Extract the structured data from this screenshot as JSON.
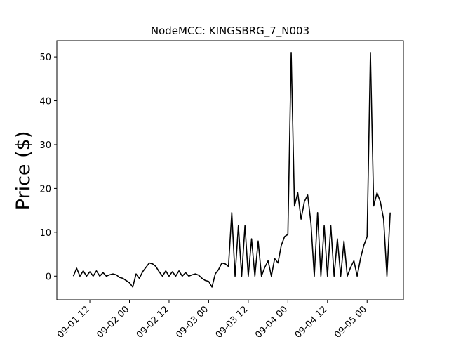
{
  "chart_data": {
    "type": "line",
    "title": "NodeMCC: KINGSBRG_7_N003",
    "y_label": "Price ($)",
    "color": "#000000",
    "x": [
      "09-01 07",
      "09-01 08",
      "09-01 09",
      "09-01 10",
      "09-01 11",
      "09-01 12",
      "09-01 13",
      "09-01 14",
      "09-01 15",
      "09-01 16",
      "09-01 17",
      "09-01 18",
      "09-01 19",
      "09-01 20",
      "09-01 21",
      "09-01 22",
      "09-01 23",
      "09-02 00",
      "09-02 01",
      "09-02 02",
      "09-02 03",
      "09-02 04",
      "09-02 05",
      "09-02 06",
      "09-02 07",
      "09-02 08",
      "09-02 09",
      "09-02 10",
      "09-02 11",
      "09-02 12",
      "09-02 13",
      "09-02 14",
      "09-02 15",
      "09-02 16",
      "09-02 17",
      "09-02 18",
      "09-02 19",
      "09-02 20",
      "09-02 21",
      "09-02 22",
      "09-02 23",
      "09-03 00",
      "09-03 01",
      "09-03 02",
      "09-03 03",
      "09-03 04",
      "09-03 05",
      "09-03 06",
      "09-03 07",
      "09-03 08",
      "09-03 09",
      "09-03 10",
      "09-03 11",
      "09-03 12",
      "09-03 13",
      "09-03 14",
      "09-03 15",
      "09-03 16",
      "09-03 17",
      "09-03 18",
      "09-03 19",
      "09-03 20",
      "09-03 21",
      "09-03 22",
      "09-03 23",
      "09-04 00",
      "09-04 01",
      "09-04 02",
      "09-04 03",
      "09-04 04",
      "09-04 05",
      "09-04 06",
      "09-04 07",
      "09-04 08",
      "09-04 09",
      "09-04 10",
      "09-04 11",
      "09-04 12",
      "09-04 13",
      "09-04 14",
      "09-04 15",
      "09-04 16",
      "09-04 17",
      "09-04 18",
      "09-04 19",
      "09-04 20",
      "09-04 21",
      "09-04 22",
      "09-04 23",
      "09-05 00",
      "09-05 01",
      "09-05 02",
      "09-05 03",
      "09-05 04",
      "09-05 05",
      "09-05 06",
      "09-05 07"
    ],
    "values": [
      0,
      1.8,
      0,
      1.2,
      0,
      1,
      0,
      1.2,
      0,
      0.8,
      0,
      0.3,
      0.5,
      0.3,
      -0.3,
      -0.5,
      -1,
      -1.5,
      -2.5,
      0.5,
      -0.5,
      1,
      2,
      3,
      2.8,
      2.2,
      1,
      0,
      1.2,
      0,
      1,
      0,
      1.2,
      0,
      0.8,
      0,
      0.3,
      0.5,
      0.2,
      -0.5,
      -1,
      -1.2,
      -2.5,
      0.5,
      1.5,
      3,
      2.8,
      2.2,
      14.5,
      0,
      11.5,
      0,
      11.5,
      0,
      8.5,
      0,
      8,
      0,
      2,
      3.5,
      0,
      4,
      3,
      7,
      9,
      9.5,
      51,
      16,
      19,
      13,
      17,
      18.5,
      12,
      0,
      14.5,
      0,
      11.5,
      0,
      11.5,
      0,
      8.5,
      0,
      8,
      0,
      2,
      3.5,
      0,
      4,
      7,
      9,
      51,
      16,
      19,
      17,
      13,
      0,
      14.5
    ],
    "xlim": [
      "09-01 02",
      "09-05 11"
    ],
    "xticks": [
      "09-01 12",
      "09-02 00",
      "09-02 12",
      "09-03 00",
      "09-03 12",
      "09-04 00",
      "09-04 12",
      "09-05 00"
    ],
    "ylim": [
      -5.4,
      53.7
    ],
    "yticks": [
      0,
      10,
      20,
      30,
      40,
      50
    ]
  }
}
